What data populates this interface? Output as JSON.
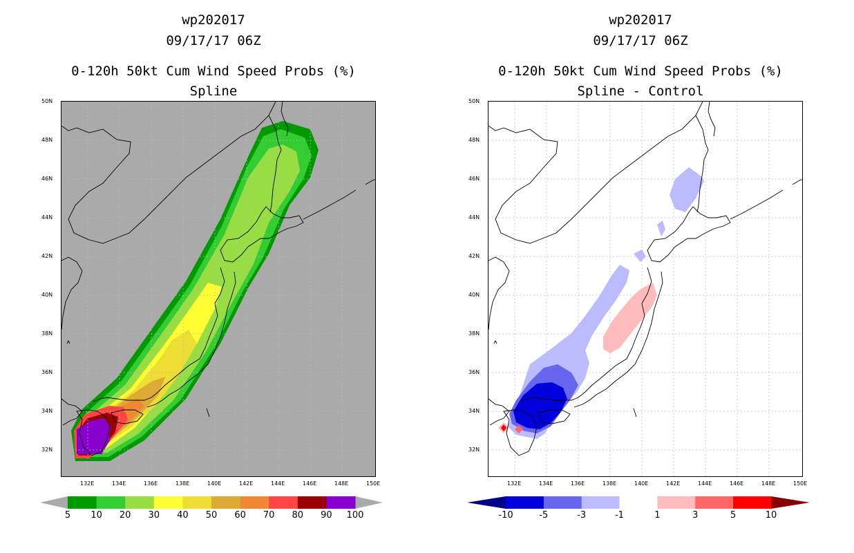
{
  "panels": [
    {
      "storm_id": "wp202017",
      "datetime": "09/17/17 06Z",
      "title": "0-120h 50kt Cum Wind Speed Probs (%)",
      "subtitle": "Spline",
      "colorbar": {
        "colors": [
          "#009900",
          "#33cc33",
          "#99dd44",
          "#ffff33",
          "#eedd33",
          "#ddaa33",
          "#ee8833",
          "#ff4444",
          "#990000",
          "#8800cc"
        ],
        "labels": [
          "5",
          "10",
          "20",
          "30",
          "40",
          "50",
          "60",
          "70",
          "80",
          "90",
          "100"
        ],
        "arrow_color": "#aaaaaa"
      }
    },
    {
      "storm_id": "wp202017",
      "datetime": "09/17/17 06Z",
      "title": "0-120h 50kt Cum Wind Speed Probs (%)",
      "subtitle": "Spline - Control",
      "colorbar": {
        "colors": [
          "#0000dd",
          "#6666ee",
          "#bbbbff",
          "#ffffff",
          "#ffbbbb",
          "#ff6666",
          "#ff0000"
        ],
        "labels": [
          "-10",
          "-5",
          "-3",
          "-1",
          "1",
          "3",
          "5",
          "10"
        ],
        "arrow_left_color": "#000088",
        "arrow_right_color": "#880000"
      }
    }
  ],
  "lat_labels": [
    "50N",
    "48N",
    "46N",
    "44N",
    "42N",
    "40N",
    "38N",
    "36N",
    "34N",
    "32N"
  ],
  "lon_labels": [
    "132E",
    "134E",
    "136E",
    "138E",
    "140E",
    "142E",
    "144E",
    "146E",
    "148E",
    "150E"
  ],
  "map_colors": {
    "land_sea_bg_left": "#aaaaaa",
    "land_sea_bg_right": "#ffffff",
    "coast": "#000000",
    "grid": "#bbbbbb"
  }
}
